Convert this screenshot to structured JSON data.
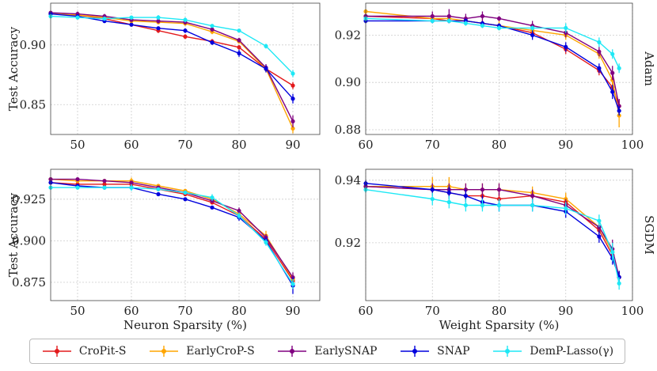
{
  "figure": {
    "row_labels": [
      "Adam",
      "SGDM"
    ],
    "legend": [
      {
        "name": "CroPit-S",
        "color": "#e31a1c"
      },
      {
        "name": "EarlyCroP-S",
        "color": "#ffa500"
      },
      {
        "name": "EarlySNAP",
        "color": "#800080"
      },
      {
        "name": "SNAP",
        "color": "#0000dd"
      },
      {
        "name": "DemP-Lasso(γ)",
        "color": "#1ee8f5"
      }
    ],
    "grid_color": "#cccccc"
  },
  "chart_data": [
    {
      "type": "line",
      "panel": "neuron-adam",
      "optimizer": "Adam",
      "xlabel": "",
      "ylabel": "Test Accuracy",
      "xlim": [
        45,
        95
      ],
      "ylim": [
        0.825,
        0.935
      ],
      "xticks": [
        50,
        60,
        70,
        80,
        90
      ],
      "xtick_labels": [
        "50",
        "60",
        "70",
        "80",
        "90"
      ],
      "yticks": [
        0.85,
        0.9
      ],
      "ytick_labels": [
        "0.85",
        "0.90"
      ],
      "grid": true,
      "series": [
        {
          "name": "CroPit-S",
          "x": [
            45,
            50,
            55,
            60,
            65,
            70,
            75,
            80,
            85,
            90
          ],
          "y": [
            0.926,
            0.925,
            0.922,
            0.917,
            0.912,
            0.907,
            0.903,
            0.898,
            0.88,
            0.866
          ],
          "err": [
            0.001,
            0.001,
            0.001,
            0.001,
            0.002,
            0.002,
            0.002,
            0.002,
            0.002,
            0.003
          ]
        },
        {
          "name": "EarlyCroP-S",
          "x": [
            45,
            50,
            55,
            60,
            65,
            70,
            75,
            80,
            85,
            90
          ],
          "y": [
            0.926,
            0.925,
            0.923,
            0.92,
            0.919,
            0.918,
            0.911,
            0.903,
            0.88,
            0.83
          ],
          "err": [
            0.001,
            0.001,
            0.001,
            0.001,
            0.001,
            0.002,
            0.002,
            0.002,
            0.003,
            0.004
          ]
        },
        {
          "name": "EarlySNAP",
          "x": [
            45,
            50,
            55,
            60,
            65,
            70,
            75,
            80,
            85,
            90
          ],
          "y": [
            0.927,
            0.926,
            0.924,
            0.921,
            0.92,
            0.919,
            0.913,
            0.904,
            0.881,
            0.836
          ],
          "err": [
            0.001,
            0.002,
            0.002,
            0.001,
            0.002,
            0.002,
            0.002,
            0.002,
            0.003,
            0.005
          ]
        },
        {
          "name": "SNAP",
          "x": [
            45,
            50,
            55,
            60,
            65,
            70,
            75,
            80,
            85,
            90
          ],
          "y": [
            0.926,
            0.924,
            0.92,
            0.917,
            0.914,
            0.912,
            0.902,
            0.893,
            0.88,
            0.855
          ],
          "err": [
            0.001,
            0.001,
            0.001,
            0.001,
            0.001,
            0.002,
            0.002,
            0.003,
            0.003,
            0.004
          ]
        },
        {
          "name": "DemP-Lasso(γ)",
          "x": [
            45,
            50,
            55,
            60,
            65,
            70,
            75,
            80,
            85,
            90
          ],
          "y": [
            0.924,
            0.923,
            0.922,
            0.923,
            0.923,
            0.921,
            0.916,
            0.912,
            0.899,
            0.876
          ],
          "err": [
            0.001,
            0.001,
            0.001,
            0.001,
            0.002,
            0.002,
            0.001,
            0.001,
            0.002,
            0.003
          ]
        }
      ]
    },
    {
      "type": "line",
      "panel": "weight-adam",
      "optimizer": "Adam",
      "xlabel": "",
      "ylabel": "",
      "xlim": [
        60,
        100
      ],
      "ylim": [
        0.878,
        0.9335
      ],
      "xticks": [
        60,
        70,
        80,
        90,
        100
      ],
      "xtick_labels": [
        "60",
        "70",
        "80",
        "90",
        "100"
      ],
      "yticks": [
        0.88,
        0.9,
        0.92
      ],
      "ytick_labels": [
        "0.88",
        "0.90",
        "0.92"
      ],
      "grid": true,
      "series": [
        {
          "name": "CroPit-S",
          "x": [
            60,
            70,
            72.5,
            75,
            77.5,
            80,
            85,
            90,
            95,
            97,
            98
          ],
          "y": [
            0.928,
            0.927,
            0.926,
            0.926,
            0.925,
            0.924,
            0.921,
            0.914,
            0.905,
            0.898,
            0.89
          ],
          "err": [
            0.001,
            0.001,
            0.001,
            0.001,
            0.001,
            0.001,
            0.002,
            0.002,
            0.002,
            0.003,
            0.003
          ]
        },
        {
          "name": "EarlyCroP-S",
          "x": [
            60,
            70,
            72.5,
            75,
            77.5,
            80,
            85,
            90,
            95,
            97,
            98
          ],
          "y": [
            0.93,
            0.927,
            0.927,
            0.926,
            0.925,
            0.924,
            0.922,
            0.92,
            0.912,
            0.901,
            0.886
          ],
          "err": [
            0.001,
            0.002,
            0.002,
            0.002,
            0.002,
            0.002,
            0.002,
            0.002,
            0.002,
            0.004,
            0.005
          ]
        },
        {
          "name": "EarlySNAP",
          "x": [
            60,
            70,
            72.5,
            75,
            77.5,
            80,
            85,
            90,
            95,
            97,
            98
          ],
          "y": [
            0.928,
            0.928,
            0.928,
            0.927,
            0.928,
            0.927,
            0.924,
            0.921,
            0.913,
            0.904,
            0.89
          ],
          "err": [
            0.001,
            0.002,
            0.003,
            0.002,
            0.002,
            0.001,
            0.002,
            0.002,
            0.002,
            0.003,
            0.003
          ]
        },
        {
          "name": "SNAP",
          "x": [
            60,
            70,
            72.5,
            75,
            77.5,
            80,
            85,
            90,
            95,
            97,
            98
          ],
          "y": [
            0.926,
            0.926,
            0.926,
            0.926,
            0.925,
            0.924,
            0.92,
            0.915,
            0.906,
            0.896,
            0.888
          ],
          "err": [
            0.001,
            0.001,
            0.001,
            0.001,
            0.001,
            0.001,
            0.002,
            0.002,
            0.002,
            0.003,
            0.002
          ]
        },
        {
          "name": "DemP-Lasso(γ)",
          "x": [
            60,
            70,
            72.5,
            75,
            77.5,
            80,
            85,
            90,
            95,
            97,
            98
          ],
          "y": [
            0.927,
            0.926,
            0.926,
            0.925,
            0.924,
            0.923,
            0.923,
            0.923,
            0.917,
            0.912,
            0.906
          ],
          "err": [
            0.001,
            0.001,
            0.001,
            0.001,
            0.001,
            0.001,
            0.001,
            0.002,
            0.002,
            0.002,
            0.002
          ]
        }
      ]
    },
    {
      "type": "line",
      "panel": "neuron-sgdm",
      "optimizer": "SGDM",
      "xlabel": "Neuron Sparsity (%)",
      "ylabel": "Test Accuracy",
      "xlim": [
        45,
        95
      ],
      "ylim": [
        0.864,
        0.943
      ],
      "xticks": [
        50,
        60,
        70,
        80,
        90
      ],
      "xtick_labels": [
        "50",
        "60",
        "70",
        "80",
        "90"
      ],
      "yticks": [
        0.875,
        0.9,
        0.925
      ],
      "ytick_labels": [
        "0.875",
        "0.900",
        "0.925"
      ],
      "grid": true,
      "series": [
        {
          "name": "CroPit-S",
          "x": [
            45,
            50,
            55,
            60,
            65,
            70,
            75,
            80,
            85,
            90
          ],
          "y": [
            0.935,
            0.934,
            0.934,
            0.934,
            0.931,
            0.928,
            0.923,
            0.915,
            0.901,
            0.876
          ],
          "err": [
            0.001,
            0.001,
            0.001,
            0.001,
            0.001,
            0.001,
            0.001,
            0.002,
            0.002,
            0.003
          ]
        },
        {
          "name": "EarlyCroP-S",
          "x": [
            45,
            50,
            55,
            60,
            65,
            70,
            75,
            80,
            85,
            90
          ],
          "y": [
            0.937,
            0.936,
            0.936,
            0.936,
            0.933,
            0.93,
            0.925,
            0.916,
            0.903,
            0.877
          ],
          "err": [
            0.001,
            0.001,
            0.001,
            0.002,
            0.001,
            0.001,
            0.001,
            0.002,
            0.003,
            0.003
          ]
        },
        {
          "name": "EarlySNAP",
          "x": [
            45,
            50,
            55,
            60,
            65,
            70,
            75,
            80,
            85,
            90
          ],
          "y": [
            0.937,
            0.937,
            0.936,
            0.935,
            0.932,
            0.929,
            0.924,
            0.918,
            0.902,
            0.878
          ],
          "err": [
            0.001,
            0.001,
            0.001,
            0.001,
            0.001,
            0.001,
            0.001,
            0.002,
            0.002,
            0.003
          ]
        },
        {
          "name": "SNAP",
          "x": [
            45,
            50,
            55,
            60,
            65,
            70,
            75,
            80,
            85,
            90
          ],
          "y": [
            0.935,
            0.933,
            0.932,
            0.932,
            0.928,
            0.925,
            0.92,
            0.914,
            0.9,
            0.873
          ],
          "err": [
            0.001,
            0.001,
            0.001,
            0.001,
            0.001,
            0.001,
            0.001,
            0.002,
            0.002,
            0.005
          ]
        },
        {
          "name": "DemP-Lasso(γ)",
          "x": [
            45,
            50,
            55,
            60,
            65,
            70,
            75,
            80,
            85,
            90
          ],
          "y": [
            0.932,
            0.932,
            0.932,
            0.932,
            0.931,
            0.929,
            0.926,
            0.915,
            0.899,
            0.874
          ],
          "err": [
            0.001,
            0.001,
            0.001,
            0.002,
            0.001,
            0.001,
            0.002,
            0.002,
            0.002,
            0.003
          ]
        }
      ]
    },
    {
      "type": "line",
      "panel": "weight-sgdm",
      "optimizer": "SGDM",
      "xlabel": "Weight Sparsity (%)",
      "ylabel": "",
      "xlim": [
        60,
        100
      ],
      "ylim": [
        0.9015,
        0.9435
      ],
      "xticks": [
        60,
        70,
        80,
        90,
        100
      ],
      "xtick_labels": [
        "60",
        "70",
        "80",
        "90",
        "100"
      ],
      "yticks": [
        0.92,
        0.94
      ],
      "ytick_labels": [
        "0.92",
        "0.94"
      ],
      "grid": true,
      "series": [
        {
          "name": "CroPit-S",
          "x": [
            60,
            70,
            72.5,
            75,
            77.5,
            80,
            85,
            90,
            95,
            97,
            98
          ],
          "y": [
            0.938,
            0.937,
            0.936,
            0.935,
            0.935,
            0.934,
            0.935,
            0.933,
            0.924,
            0.916,
            0.909
          ],
          "err": [
            0.001,
            0.002,
            0.002,
            0.002,
            0.002,
            0.002,
            0.002,
            0.002,
            0.002,
            0.002,
            0.002
          ]
        },
        {
          "name": "EarlyCroP-S",
          "x": [
            60,
            70,
            72.5,
            75,
            77.5,
            80,
            85,
            90,
            95,
            97,
            98
          ],
          "y": [
            0.938,
            0.938,
            0.938,
            0.937,
            0.937,
            0.937,
            0.936,
            0.934,
            0.925,
            0.917,
            0.909
          ],
          "err": [
            0.001,
            0.003,
            0.003,
            0.002,
            0.002,
            0.002,
            0.002,
            0.002,
            0.002,
            0.003,
            0.002
          ]
        },
        {
          "name": "EarlySNAP",
          "x": [
            60,
            70,
            72.5,
            75,
            77.5,
            80,
            85,
            90,
            95,
            97,
            98
          ],
          "y": [
            0.938,
            0.937,
            0.937,
            0.937,
            0.937,
            0.937,
            0.935,
            0.932,
            0.925,
            0.918,
            0.909
          ],
          "err": [
            0.001,
            0.002,
            0.002,
            0.002,
            0.002,
            0.002,
            0.002,
            0.002,
            0.002,
            0.003,
            0.002
          ]
        },
        {
          "name": "SNAP",
          "x": [
            60,
            70,
            72.5,
            75,
            77.5,
            80,
            85,
            90,
            95,
            97,
            98
          ],
          "y": [
            0.939,
            0.937,
            0.936,
            0.935,
            0.933,
            0.932,
            0.932,
            0.93,
            0.922,
            0.915,
            0.909
          ],
          "err": [
            0.001,
            0.001,
            0.002,
            0.002,
            0.002,
            0.002,
            0.002,
            0.002,
            0.002,
            0.002,
            0.002
          ]
        },
        {
          "name": "DemP-Lasso(γ)",
          "x": [
            60,
            70,
            72.5,
            75,
            77.5,
            80,
            85,
            90,
            95,
            97,
            98
          ],
          "y": [
            0.937,
            0.934,
            0.933,
            0.932,
            0.932,
            0.932,
            0.932,
            0.931,
            0.927,
            0.917,
            0.907
          ],
          "err": [
            0.001,
            0.002,
            0.002,
            0.002,
            0.002,
            0.002,
            0.002,
            0.002,
            0.002,
            0.003,
            0.002
          ]
        }
      ]
    }
  ]
}
